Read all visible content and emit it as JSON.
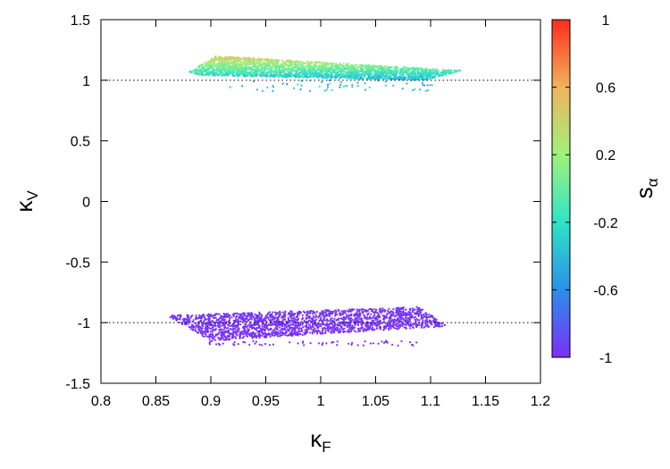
{
  "chart_data": {
    "type": "scatter",
    "title": "",
    "xlabel": {
      "base": "κ",
      "sub": "F"
    },
    "ylabel": {
      "base": "κ",
      "sub": "V"
    },
    "colorbar_label": {
      "base": "s",
      "sub": "α"
    },
    "xlim": [
      0.8,
      1.2
    ],
    "ylim": [
      -1.5,
      1.5
    ],
    "xticks": [
      "0.8",
      "0.85",
      "0.9",
      "0.95",
      "1",
      "1.05",
      "1.1",
      "1.15",
      "1.2"
    ],
    "yticks": [
      "-1.5",
      "-1",
      "-0.5",
      "0",
      "0.5",
      "1",
      "1.5"
    ],
    "colorbar_range": [
      -1,
      1
    ],
    "colorbar_ticks": [
      "-1",
      "-0.6",
      "-0.2",
      "0.2",
      "0.6",
      "1"
    ],
    "colormap": [
      "#7b2ff7",
      "#2a8fe8",
      "#2fe4c6",
      "#9ff27a",
      "#f0b35d",
      "#ff2c1d"
    ],
    "reference_lines": [
      1,
      -1
    ],
    "grid": false,
    "clusters": [
      {
        "name": "upper band",
        "polygon_kF_kV": [
          [
            0.88,
            1.07
          ],
          [
            0.905,
            1.2
          ],
          [
            1.128,
            1.08
          ],
          [
            1.095,
            1.0
          ],
          [
            0.89,
            1.04
          ]
        ],
        "scatter_below_to": 0.91,
        "s_alpha_range": [
          -0.6,
          0.65
        ],
        "approx_points": 2600
      },
      {
        "name": "lower band",
        "polygon_kF_kV": [
          [
            0.86,
            -0.94
          ],
          [
            0.99,
            -0.9
          ],
          [
            1.09,
            -0.87
          ],
          [
            1.115,
            -1.03
          ],
          [
            0.9,
            -1.15
          ]
        ],
        "scatter_below_to": -1.19,
        "s_alpha_range": [
          -1.0,
          -0.96
        ],
        "approx_points": 2200
      }
    ]
  }
}
